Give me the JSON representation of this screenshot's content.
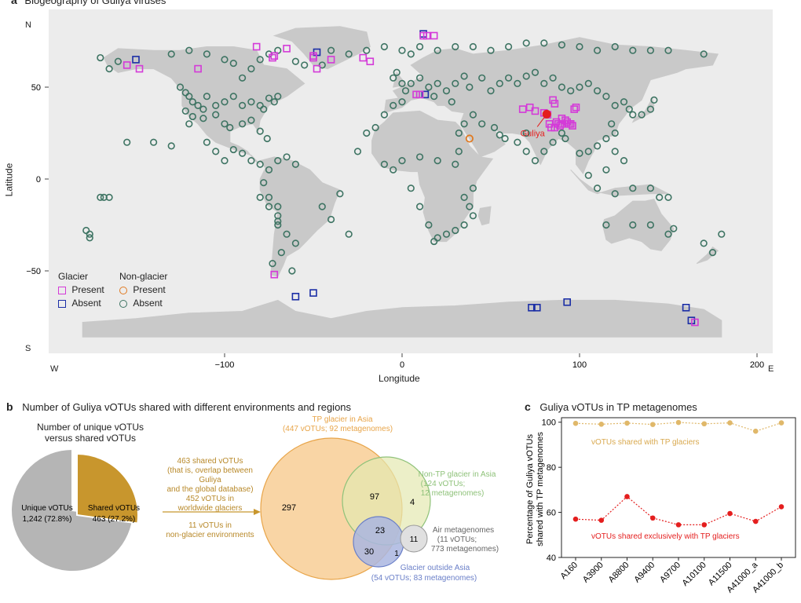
{
  "panel_a": {
    "letter": "a",
    "title": "Biogeography of Guliya viruses",
    "x_label": "Longitude",
    "y_label": "Latitude",
    "x_ticks": [
      "−100",
      "0",
      "100",
      "200"
    ],
    "y_ticks": [
      "50",
      "0",
      "−50"
    ],
    "compass": {
      "north": "N",
      "south": "S",
      "west": "W",
      "east": "E"
    },
    "guliya_label": "Guliya",
    "legend": {
      "glacier_heading": "Glacier",
      "nonglacier_heading": "Non-glacier",
      "present": "Present",
      "absent": "Absent"
    },
    "colors": {
      "land": "#c9c9c9",
      "ocean": "#ececec",
      "glacier_present": "#d43ad8",
      "glacier_absent": "#1b2ea6",
      "nonglacier_present": "#e07a22",
      "nonglacier_absent": "#3e7463",
      "guliya": "#e41e1e"
    }
  },
  "panel_b": {
    "letter": "b",
    "title": "Number of Guliya vOTUs shared with different environments and regions",
    "pie_title_1": "Number of unique vOTUs",
    "pie_title_2": "versus shared vOTUs",
    "unique_label": "Unique vOTUs",
    "unique_value": "1,242 (72.8%)",
    "shared_label": "Shared vOTUs",
    "shared_value": "463 (27.2%)",
    "arrow_lines": [
      "463 shared vOTUs",
      "(that is, overlap between Guliya",
      "and the global database)",
      "452 vOTUs in",
      "worldwide glaciers",
      "11 vOTUs in",
      "non-glacier environments"
    ],
    "venn_tp_title": "TP glacier in Asia",
    "venn_tp_sub": "(447 vOTUs; 92 metagenomes)",
    "venn_nontp_title": "Non-TP glacier in Asia",
    "venn_nontp_sub1": "(124 vOTUs;",
    "venn_nontp_sub2": "12 metagenomes)",
    "venn_air_title": "Air metagenomes",
    "venn_air_sub1": "(11 vOTUs;",
    "venn_air_sub2": "773 metagenomes)",
    "venn_out_title": "Glacier outside Asia",
    "venn_out_sub": "(54 vOTUs; 83 metagenomes)",
    "counts": {
      "tp_only": "297",
      "tp_nontp": "97",
      "nontp_only": "4",
      "center": "23",
      "tp_out": "30",
      "out_small": "1",
      "air": "11"
    },
    "pie_data": {
      "unique": 1242,
      "shared": 463
    }
  },
  "panel_c": {
    "letter": "c",
    "title": "Guliya vOTUs in TP metagenomes",
    "ylabel_1": "Percentage of Guliya vOTUs",
    "ylabel_2": "shared with TP metagenomes",
    "series_labels": {
      "all": "vOTUs shared with TP glaciers",
      "exclusive": "vOTUs shared exclusively with TP glaciers"
    },
    "y_ticks": [
      "100",
      "80",
      "60",
      "40"
    ]
  },
  "chart_data": {
    "type": "line",
    "categories": [
      "A160",
      "A3900",
      "A8800",
      "A9400",
      "A9700",
      "A10100",
      "A11500",
      "A41000_a",
      "A41000_b"
    ],
    "ylim": [
      40,
      102
    ],
    "series": [
      {
        "name": "vOTUs shared with TP glaciers",
        "values": [
          99.5,
          99.1,
          99.6,
          99.0,
          99.9,
          99.3,
          99.7,
          96.0,
          99.7
        ],
        "color": "#e0b86a"
      },
      {
        "name": "vOTUs shared exclusively with TP glaciers",
        "values": [
          57,
          56.5,
          67,
          57.5,
          54.5,
          54.5,
          59.5,
          56,
          62.5
        ],
        "color": "#e41e1e"
      }
    ]
  },
  "map_points": {
    "glacier_present": [
      [
        -82,
        72
      ],
      [
        -72,
        67
      ],
      [
        -73,
        66
      ],
      [
        -65,
        71
      ],
      [
        -50,
        67
      ],
      [
        -50,
        66
      ],
      [
        -48,
        60
      ],
      [
        -40,
        65
      ],
      [
        -155,
        62
      ],
      [
        -148,
        60
      ],
      [
        -115,
        60
      ],
      [
        -22,
        66
      ],
      [
        -18,
        64
      ],
      [
        8,
        46
      ],
      [
        10,
        46
      ],
      [
        12,
        78
      ],
      [
        14,
        78
      ],
      [
        18,
        78
      ],
      [
        -72,
        -52
      ],
      [
        68,
        38
      ],
      [
        72,
        39
      ],
      [
        75,
        37
      ],
      [
        80,
        36
      ],
      [
        82,
        35
      ],
      [
        85,
        43
      ],
      [
        86,
        41
      ],
      [
        87,
        31
      ],
      [
        88,
        30
      ],
      [
        89,
        29
      ],
      [
        90,
        33
      ],
      [
        92,
        32
      ],
      [
        93,
        31
      ],
      [
        94,
        30
      ],
      [
        95,
        30
      ],
      [
        96,
        29
      ],
      [
        97,
        38
      ],
      [
        98,
        39
      ],
      [
        83,
        30
      ],
      [
        84,
        28
      ],
      [
        86,
        28
      ],
      [
        90,
        30
      ],
      [
        165,
        -78
      ]
    ],
    "glacier_absent": [
      [
        -150,
        65
      ],
      [
        -48,
        69
      ],
      [
        -60,
        -64
      ],
      [
        -50,
        -62
      ],
      [
        12,
        79
      ],
      [
        13,
        46
      ],
      [
        73,
        -70
      ],
      [
        76,
        -70
      ],
      [
        93,
        -67
      ],
      [
        160,
        -70
      ],
      [
        163,
        -77
      ]
    ],
    "nonglacier_present": [
      [
        38,
        22
      ]
    ],
    "nonglacier_absent": [
      [
        -170,
        66
      ],
      [
        -160,
        64
      ],
      [
        -130,
        68
      ],
      [
        -120,
        70
      ],
      [
        -110,
        68
      ],
      [
        -100,
        65
      ],
      [
        -95,
        63
      ],
      [
        -90,
        55
      ],
      [
        -85,
        60
      ],
      [
        -80,
        65
      ],
      [
        -75,
        68
      ],
      [
        -70,
        70
      ],
      [
        -60,
        64
      ],
      [
        -55,
        62
      ],
      [
        -45,
        62
      ],
      [
        -40,
        70
      ],
      [
        -30,
        68
      ],
      [
        -20,
        70
      ],
      [
        -10,
        72
      ],
      [
        0,
        70
      ],
      [
        5,
        68
      ],
      [
        10,
        72
      ],
      [
        20,
        70
      ],
      [
        30,
        72
      ],
      [
        40,
        72
      ],
      [
        50,
        70
      ],
      [
        60,
        72
      ],
      [
        70,
        74
      ],
      [
        80,
        74
      ],
      [
        90,
        73
      ],
      [
        100,
        72
      ],
      [
        110,
        70
      ],
      [
        120,
        72
      ],
      [
        130,
        70
      ],
      [
        140,
        70
      ],
      [
        150,
        70
      ],
      [
        170,
        68
      ],
      [
        -165,
        60
      ],
      [
        -125,
        50
      ],
      [
        -122,
        47
      ],
      [
        -120,
        45
      ],
      [
        -118,
        42
      ],
      [
        -115,
        40
      ],
      [
        -112,
        38
      ],
      [
        -110,
        45
      ],
      [
        -105,
        40
      ],
      [
        -100,
        42
      ],
      [
        -95,
        45
      ],
      [
        -90,
        40
      ],
      [
        -85,
        42
      ],
      [
        -80,
        40
      ],
      [
        -78,
        38
      ],
      [
        -75,
        44
      ],
      [
        -72,
        42
      ],
      [
        -70,
        45
      ],
      [
        -122,
        37
      ],
      [
        -118,
        34
      ],
      [
        -112,
        33
      ],
      [
        -105,
        35
      ],
      [
        -100,
        30
      ],
      [
        -97,
        28
      ],
      [
        -90,
        30
      ],
      [
        -85,
        32
      ],
      [
        -80,
        26
      ],
      [
        -76,
        22
      ],
      [
        -120,
        30
      ],
      [
        -140,
        20
      ],
      [
        -130,
        18
      ],
      [
        -155,
        20
      ],
      [
        -110,
        20
      ],
      [
        -105,
        15
      ],
      [
        -100,
        10
      ],
      [
        -95,
        16
      ],
      [
        -90,
        14
      ],
      [
        -85,
        10
      ],
      [
        -80,
        8
      ],
      [
        -75,
        5
      ],
      [
        -70,
        10
      ],
      [
        -65,
        12
      ],
      [
        -60,
        8
      ],
      [
        -78,
        -2
      ],
      [
        -80,
        -10
      ],
      [
        -75,
        -15
      ],
      [
        -70,
        -20
      ],
      [
        -70,
        -23
      ],
      [
        -70,
        -25
      ],
      [
        -65,
        -30
      ],
      [
        -60,
        -35
      ],
      [
        -68,
        -40
      ],
      [
        -73,
        -46
      ],
      [
        -62,
        -50
      ],
      [
        -40,
        -22
      ],
      [
        -35,
        -8
      ],
      [
        -30,
        -30
      ],
      [
        -45,
        -15
      ],
      [
        -25,
        15
      ],
      [
        -20,
        25
      ],
      [
        -15,
        28
      ],
      [
        -10,
        35
      ],
      [
        -5,
        40
      ],
      [
        0,
        42
      ],
      [
        2,
        48
      ],
      [
        5,
        52
      ],
      [
        0,
        52
      ],
      [
        -5,
        55
      ],
      [
        -3,
        58
      ],
      [
        10,
        55
      ],
      [
        15,
        50
      ],
      [
        18,
        45
      ],
      [
        20,
        52
      ],
      [
        25,
        48
      ],
      [
        28,
        42
      ],
      [
        30,
        52
      ],
      [
        35,
        56
      ],
      [
        38,
        50
      ],
      [
        45,
        55
      ],
      [
        50,
        48
      ],
      [
        55,
        52
      ],
      [
        60,
        55
      ],
      [
        65,
        52
      ],
      [
        70,
        56
      ],
      [
        75,
        58
      ],
      [
        80,
        52
      ],
      [
        85,
        55
      ],
      [
        90,
        50
      ],
      [
        95,
        48
      ],
      [
        100,
        50
      ],
      [
        105,
        52
      ],
      [
        110,
        48
      ],
      [
        115,
        45
      ],
      [
        120,
        40
      ],
      [
        125,
        42
      ],
      [
        128,
        38
      ],
      [
        130,
        35
      ],
      [
        135,
        35
      ],
      [
        140,
        38
      ],
      [
        142,
        43
      ],
      [
        118,
        30
      ],
      [
        120,
        25
      ],
      [
        115,
        22
      ],
      [
        110,
        18
      ],
      [
        105,
        15
      ],
      [
        100,
        14
      ],
      [
        120,
        15
      ],
      [
        125,
        10
      ],
      [
        115,
        5
      ],
      [
        105,
        2
      ],
      [
        110,
        -5
      ],
      [
        120,
        -8
      ],
      [
        130,
        -5
      ],
      [
        140,
        -5
      ],
      [
        145,
        -10
      ],
      [
        150,
        -10
      ],
      [
        115,
        -25
      ],
      [
        130,
        -25
      ],
      [
        140,
        -25
      ],
      [
        150,
        -30
      ],
      [
        153,
        -27
      ],
      [
        175,
        -40
      ],
      [
        170,
        -35
      ],
      [
        180,
        -30
      ],
      [
        40,
        -5
      ],
      [
        35,
        -10
      ],
      [
        38,
        -15
      ],
      [
        40,
        -20
      ],
      [
        35,
        -25
      ],
      [
        30,
        -28
      ],
      [
        25,
        -30
      ],
      [
        20,
        -32
      ],
      [
        18,
        -34
      ],
      [
        15,
        -25
      ],
      [
        10,
        -15
      ],
      [
        5,
        -5
      ],
      [
        -5,
        5
      ],
      [
        -10,
        8
      ],
      [
        0,
        10
      ],
      [
        10,
        12
      ],
      [
        20,
        10
      ],
      [
        30,
        8
      ],
      [
        32,
        15
      ],
      [
        32,
        25
      ],
      [
        35,
        30
      ],
      [
        40,
        35
      ],
      [
        45,
        30
      ],
      [
        52,
        28
      ],
      [
        55,
        24
      ],
      [
        58,
        22
      ],
      [
        65,
        20
      ],
      [
        70,
        15
      ],
      [
        75,
        10
      ],
      [
        80,
        15
      ],
      [
        85,
        20
      ],
      [
        90,
        25
      ],
      [
        92,
        22
      ],
      [
        70,
        25
      ],
      [
        -170,
        -10
      ],
      [
        -168,
        -10
      ],
      [
        -165,
        -10
      ],
      [
        -178,
        -28
      ],
      [
        -176,
        -30
      ],
      [
        -176,
        -32
      ],
      [
        -75,
        -10
      ],
      [
        -70,
        -15
      ]
    ]
  }
}
